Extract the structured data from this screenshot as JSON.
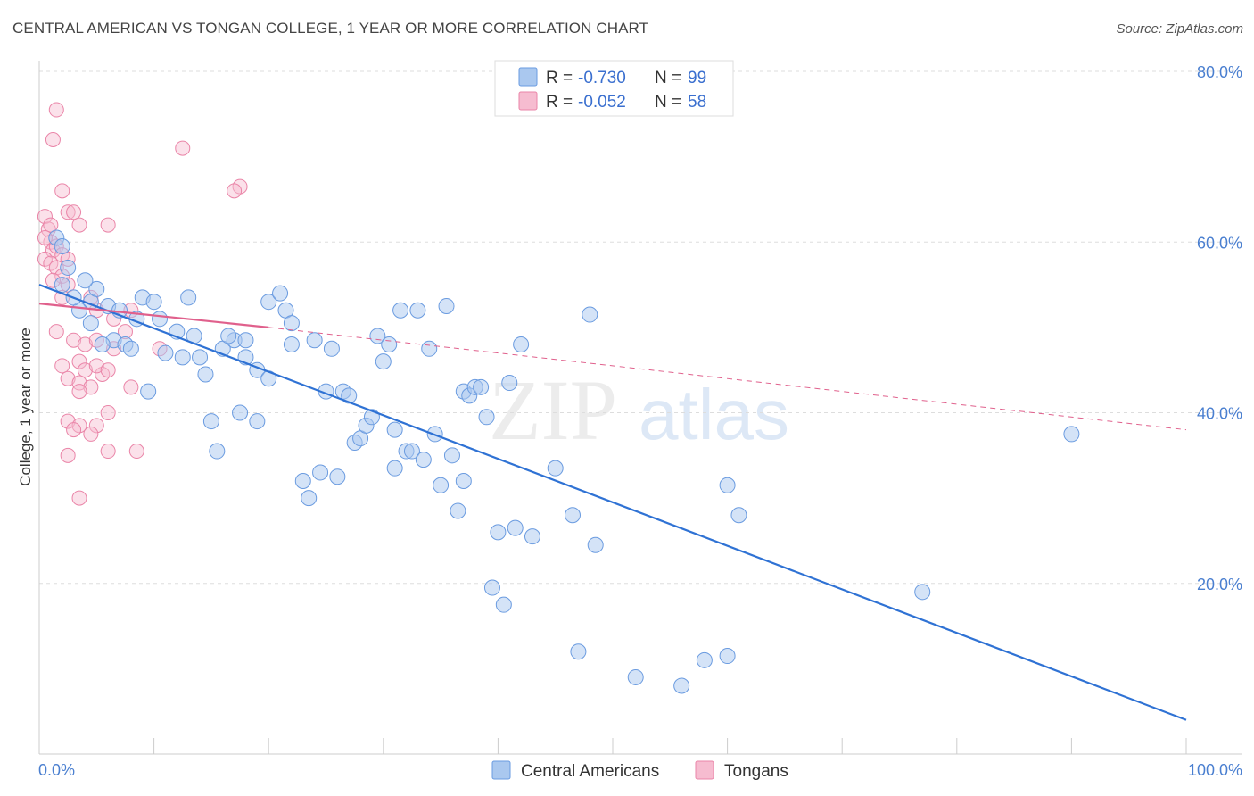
{
  "title": "CENTRAL AMERICAN VS TONGAN COLLEGE, 1 YEAR OR MORE CORRELATION CHART",
  "source": "Source: ZipAtlas.com",
  "watermark": {
    "zip": "ZIP",
    "atlas": "atlas"
  },
  "colors": {
    "blue_fill": "#aac8ef",
    "blue_stroke": "#6a9be0",
    "blue_line": "#2f72d4",
    "pink_fill": "#f6bcd0",
    "pink_stroke": "#ea85a8",
    "pink_line": "#e0608c",
    "grid": "#dddddd",
    "tick_text": "#4a7fd0"
  },
  "legend": {
    "r_label": "R =",
    "n_label": "N =",
    "rows": [
      {
        "series": "Central Americans",
        "r": "-0.730",
        "n": "99",
        "color": "blue"
      },
      {
        "series": "Tongans",
        "r": "-0.052",
        "n": "58",
        "color": "pink"
      }
    ]
  },
  "bottom_legend": [
    "Central Americans",
    "Tongans"
  ],
  "chart_data": {
    "type": "scatter",
    "title": "CENTRAL AMERICAN VS TONGAN COLLEGE, 1 YEAR OR MORE CORRELATION CHART",
    "xlabel": "",
    "ylabel": "College, 1 year or more",
    "xlim": [
      0,
      100
    ],
    "ylim": [
      0,
      80
    ],
    "x_tick_labels": [
      "0.0%",
      "100.0%"
    ],
    "y_tick_labels": [
      "20.0%",
      "40.0%",
      "60.0%",
      "80.0%"
    ],
    "y_tick_values": [
      20,
      40,
      60,
      80
    ],
    "grid": true,
    "legend_position": "top-center",
    "series": [
      {
        "name": "Central Americans",
        "color": "blue",
        "trend": {
          "x": [
            0,
            100
          ],
          "y": [
            55.0,
            4.0
          ]
        },
        "points": [
          [
            1.5,
            60.5
          ],
          [
            2.0,
            59.5
          ],
          [
            2.5,
            57.0
          ],
          [
            4.5,
            53.0
          ],
          [
            5.0,
            54.5
          ],
          [
            3.5,
            52.0
          ],
          [
            6.0,
            52.5
          ],
          [
            4.5,
            50.5
          ],
          [
            6.5,
            48.5
          ],
          [
            7.5,
            48.0
          ],
          [
            8.5,
            51.0
          ],
          [
            9.0,
            53.5
          ],
          [
            10.0,
            53.0
          ],
          [
            10.5,
            51.0
          ],
          [
            12.0,
            49.5
          ],
          [
            11.0,
            47.0
          ],
          [
            12.5,
            46.5
          ],
          [
            13.0,
            53.5
          ],
          [
            14.0,
            46.5
          ],
          [
            14.5,
            44.5
          ],
          [
            15.0,
            39.0
          ],
          [
            15.5,
            35.5
          ],
          [
            16.0,
            47.5
          ],
          [
            17.0,
            48.5
          ],
          [
            17.5,
            40.0
          ],
          [
            18.0,
            48.5
          ],
          [
            18.0,
            46.5
          ],
          [
            19.0,
            39.0
          ],
          [
            19.0,
            45.0
          ],
          [
            20.0,
            53.0
          ],
          [
            20.0,
            44.0
          ],
          [
            21.0,
            54.0
          ],
          [
            21.5,
            52.0
          ],
          [
            22.0,
            48.0
          ],
          [
            22.0,
            50.5
          ],
          [
            23.0,
            32.0
          ],
          [
            23.5,
            30.0
          ],
          [
            24.0,
            48.5
          ],
          [
            24.5,
            33.0
          ],
          [
            25.0,
            42.5
          ],
          [
            25.5,
            47.5
          ],
          [
            26.0,
            32.5
          ],
          [
            26.5,
            42.5
          ],
          [
            27.0,
            42.0
          ],
          [
            27.5,
            36.5
          ],
          [
            28.0,
            37.0
          ],
          [
            28.5,
            38.5
          ],
          [
            29.0,
            39.5
          ],
          [
            29.5,
            49.0
          ],
          [
            30.0,
            46.0
          ],
          [
            30.5,
            48.0
          ],
          [
            31.0,
            33.5
          ],
          [
            31.0,
            38.0
          ],
          [
            31.5,
            52.0
          ],
          [
            32.0,
            35.5
          ],
          [
            32.5,
            35.5
          ],
          [
            33.0,
            52.0
          ],
          [
            33.5,
            34.5
          ],
          [
            34.0,
            47.5
          ],
          [
            34.5,
            37.5
          ],
          [
            35.0,
            31.5
          ],
          [
            35.5,
            52.5
          ],
          [
            36.0,
            35.0
          ],
          [
            36.5,
            28.5
          ],
          [
            37.0,
            32.0
          ],
          [
            37.0,
            42.5
          ],
          [
            37.5,
            42.0
          ],
          [
            38.0,
            43.0
          ],
          [
            38.5,
            43.0
          ],
          [
            39.0,
            39.5
          ],
          [
            39.5,
            19.5
          ],
          [
            40.0,
            26.0
          ],
          [
            40.5,
            17.5
          ],
          [
            41.0,
            43.5
          ],
          [
            41.5,
            26.5
          ],
          [
            42.0,
            48.0
          ],
          [
            43.0,
            25.5
          ],
          [
            45.0,
            33.5
          ],
          [
            46.5,
            28.0
          ],
          [
            47.0,
            12.0
          ],
          [
            48.5,
            24.5
          ],
          [
            48.0,
            51.5
          ],
          [
            52.0,
            9.0
          ],
          [
            56.0,
            8.0
          ],
          [
            58.0,
            11.0
          ],
          [
            60.0,
            11.5
          ],
          [
            60.0,
            31.5
          ],
          [
            61.0,
            28.0
          ],
          [
            77.0,
            19.0
          ],
          [
            90.0,
            37.5
          ],
          [
            4.0,
            55.5
          ],
          [
            5.5,
            48.0
          ],
          [
            8.0,
            47.5
          ],
          [
            2.0,
            55.0
          ],
          [
            3.0,
            53.5
          ],
          [
            7.0,
            52.0
          ],
          [
            9.5,
            42.5
          ],
          [
            13.5,
            49.0
          ],
          [
            16.5,
            49.0
          ]
        ]
      },
      {
        "name": "Tongans",
        "color": "pink",
        "trend": {
          "x": [
            0,
            20
          ],
          "y": [
            52.8,
            50.0
          ]
        },
        "trend_dashed": {
          "x": [
            20,
            100
          ],
          "y": [
            50.0,
            38.0
          ]
        },
        "points": [
          [
            1.5,
            75.5
          ],
          [
            1.2,
            72.0
          ],
          [
            2.0,
            66.0
          ],
          [
            0.5,
            63.0
          ],
          [
            0.8,
            61.5
          ],
          [
            1.0,
            60.0
          ],
          [
            1.2,
            59.0
          ],
          [
            0.5,
            58.0
          ],
          [
            1.0,
            57.5
          ],
          [
            1.5,
            57.0
          ],
          [
            2.0,
            56.0
          ],
          [
            2.5,
            55.0
          ],
          [
            1.0,
            62.0
          ],
          [
            2.5,
            63.5
          ],
          [
            3.0,
            63.5
          ],
          [
            3.5,
            62.0
          ],
          [
            6.0,
            62.0
          ],
          [
            0.5,
            60.5
          ],
          [
            1.5,
            59.5
          ],
          [
            2.0,
            58.5
          ],
          [
            2.5,
            58.0
          ],
          [
            1.2,
            55.5
          ],
          [
            4.5,
            53.5
          ],
          [
            5.0,
            52.0
          ],
          [
            6.5,
            51.0
          ],
          [
            7.5,
            49.5
          ],
          [
            1.5,
            49.5
          ],
          [
            3.0,
            48.5
          ],
          [
            4.0,
            48.0
          ],
          [
            5.0,
            48.5
          ],
          [
            6.5,
            47.5
          ],
          [
            3.5,
            46.0
          ],
          [
            2.0,
            45.5
          ],
          [
            4.0,
            45.0
          ],
          [
            5.5,
            44.5
          ],
          [
            2.5,
            44.0
          ],
          [
            3.5,
            43.5
          ],
          [
            4.5,
            43.0
          ],
          [
            5.0,
            45.5
          ],
          [
            6.0,
            45.0
          ],
          [
            3.5,
            42.5
          ],
          [
            6.0,
            40.0
          ],
          [
            2.5,
            39.0
          ],
          [
            3.5,
            38.5
          ],
          [
            5.0,
            38.5
          ],
          [
            3.0,
            38.0
          ],
          [
            4.5,
            37.5
          ],
          [
            6.0,
            35.5
          ],
          [
            2.5,
            35.0
          ],
          [
            8.5,
            35.5
          ],
          [
            3.5,
            30.0
          ],
          [
            8.0,
            43.0
          ],
          [
            10.5,
            47.5
          ],
          [
            12.5,
            71.0
          ],
          [
            17.5,
            66.5
          ],
          [
            17.0,
            66.0
          ],
          [
            8.0,
            52.0
          ],
          [
            2.0,
            53.5
          ]
        ]
      }
    ]
  }
}
